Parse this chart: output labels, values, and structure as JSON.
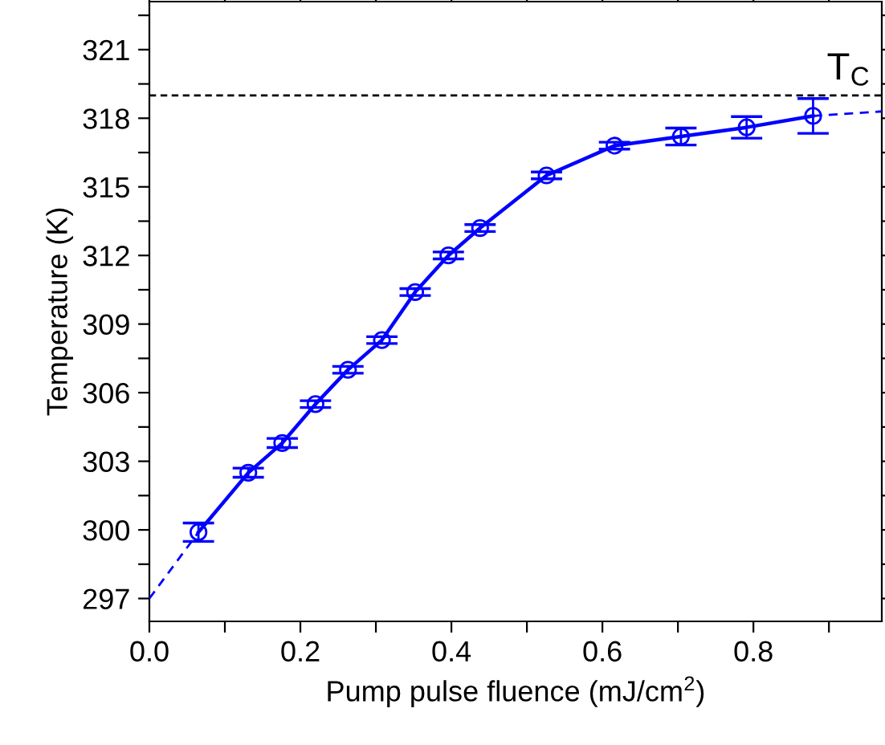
{
  "chart_data": {
    "type": "line",
    "xlabel": "Pump pulse fluence (mJ/cm$^{2}$)",
    "ylabel": "Temperature (K)",
    "xlim": [
      0,
      0.97
    ],
    "ylim": [
      296,
      323.1
    ],
    "xticks": [
      {
        "value": 0,
        "label": "0.0"
      },
      {
        "value": 0.1,
        "label": null
      },
      0.2,
      {
        "value": 0.3,
        "label": null
      },
      0.4,
      {
        "value": 0.5,
        "label": null
      },
      0.6,
      {
        "value": 0.7,
        "label": null
      },
      0.8,
      {
        "value": 0.9,
        "label": null
      }
    ],
    "yticks": [
      297,
      {
        "value": 298.5,
        "label": null
      },
      300,
      {
        "value": 301.5,
        "label": null
      },
      303,
      {
        "value": 304.5,
        "label": null
      },
      306,
      {
        "value": 307.5,
        "label": null
      },
      309,
      {
        "value": 310.5,
        "label": null
      },
      312,
      {
        "value": 313.5,
        "label": null
      },
      315,
      {
        "value": 316.5,
        "label": null
      },
      318,
      {
        "value": 319.5,
        "label": null
      },
      321,
      {
        "value": 322.5,
        "label": null
      }
    ],
    "grid": false,
    "legend": false,
    "series": [
      {
        "color": "#0000ff",
        "marker": "circle",
        "line_style": "solid",
        "x": [
          0.065,
          0.131,
          0.176,
          0.22,
          0.263,
          0.308,
          0.352,
          0.396,
          0.438,
          0.526,
          0.616,
          0.704,
          0.791,
          0.879
        ],
        "values": [
          299.9,
          302.5,
          303.8,
          305.5,
          307.0,
          308.3,
          310.4,
          312.0,
          313.2,
          315.5,
          316.8,
          317.2,
          317.6,
          318.1
        ],
        "errors": [
          0.4,
          0.2,
          0.2,
          0.15,
          0.15,
          0.15,
          0.15,
          0.15,
          0.15,
          0.15,
          0.15,
          0.37,
          0.47,
          0.76
        ]
      },
      {
        "color": "#0000ff",
        "marker": "none",
        "line_style": "dashed",
        "x": [
          0,
          0.065
        ],
        "values": [
          297.0,
          299.9
        ]
      },
      {
        "color": "#0000ff",
        "marker": "none",
        "line_style": "dashed",
        "x": [
          0.879,
          0.97
        ],
        "values": [
          318.1,
          318.3
        ]
      }
    ],
    "ref_lines": [
      {
        "axis": "y",
        "value": 319.0,
        "label": "T$_{C}$",
        "color": "#000000",
        "line_style": "dashed"
      }
    ]
  }
}
